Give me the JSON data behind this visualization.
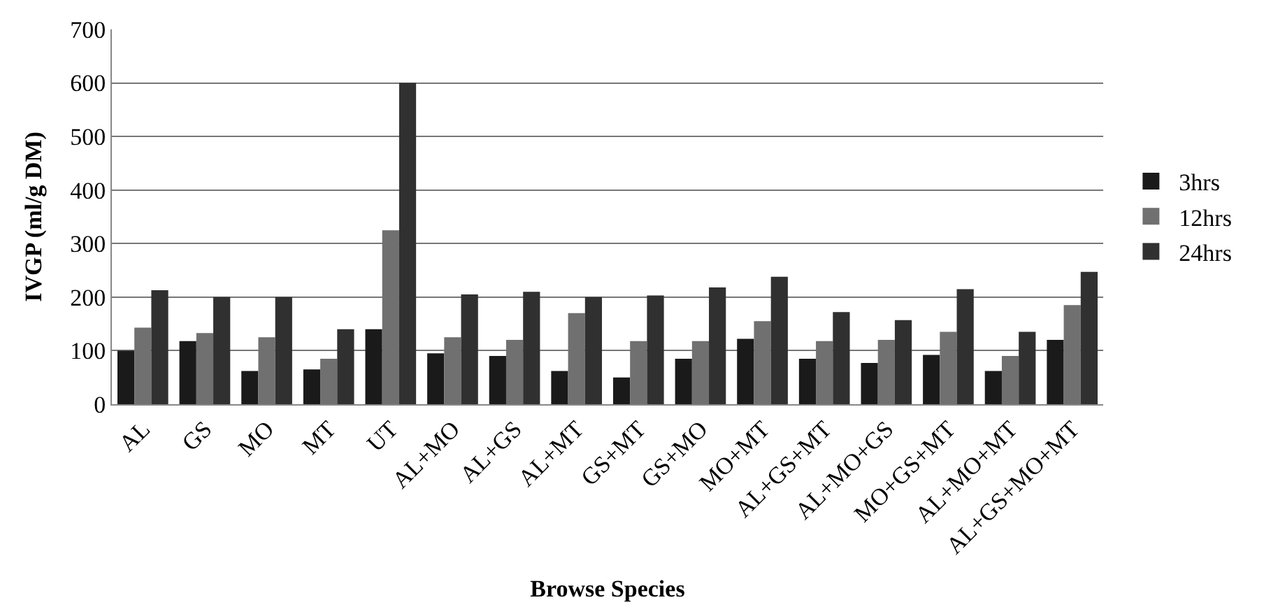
{
  "chart_data": {
    "type": "bar",
    "xlabel": "Browse Species",
    "ylabel": "IVGP (ml/g DM)",
    "categories": [
      "AL",
      "GS",
      "MO",
      "MT",
      "UT",
      "AL+MO",
      "AL+GS",
      "AL+MT",
      "GS+MT",
      "GS+MO",
      "MO+MT",
      "AL+GS+MT",
      "AL+MO+GS",
      "MO+GS+MT",
      "AL+MO+MT",
      "AL+GS+MO+MT"
    ],
    "series": [
      {
        "name": "3hrs",
        "color": "#1a1a1a",
        "values": [
          100,
          118,
          62,
          65,
          140,
          95,
          90,
          62,
          50,
          85,
          122,
          85,
          77,
          92,
          62,
          120
        ]
      },
      {
        "name": "12hrs",
        "color": "#707070",
        "values": [
          143,
          133,
          125,
          85,
          325,
          125,
          120,
          170,
          118,
          118,
          155,
          118,
          120,
          135,
          90,
          185
        ]
      },
      {
        "name": "24hrs",
        "color": "#303030",
        "values": [
          213,
          200,
          200,
          140,
          600,
          205,
          210,
          200,
          203,
          218,
          238,
          172,
          157,
          215,
          135,
          247
        ]
      }
    ],
    "ylim": [
      0,
      700
    ],
    "yticks": [
      0,
      100,
      200,
      300,
      400,
      500,
      600,
      700
    ],
    "grid": "y",
    "legend": "right"
  }
}
